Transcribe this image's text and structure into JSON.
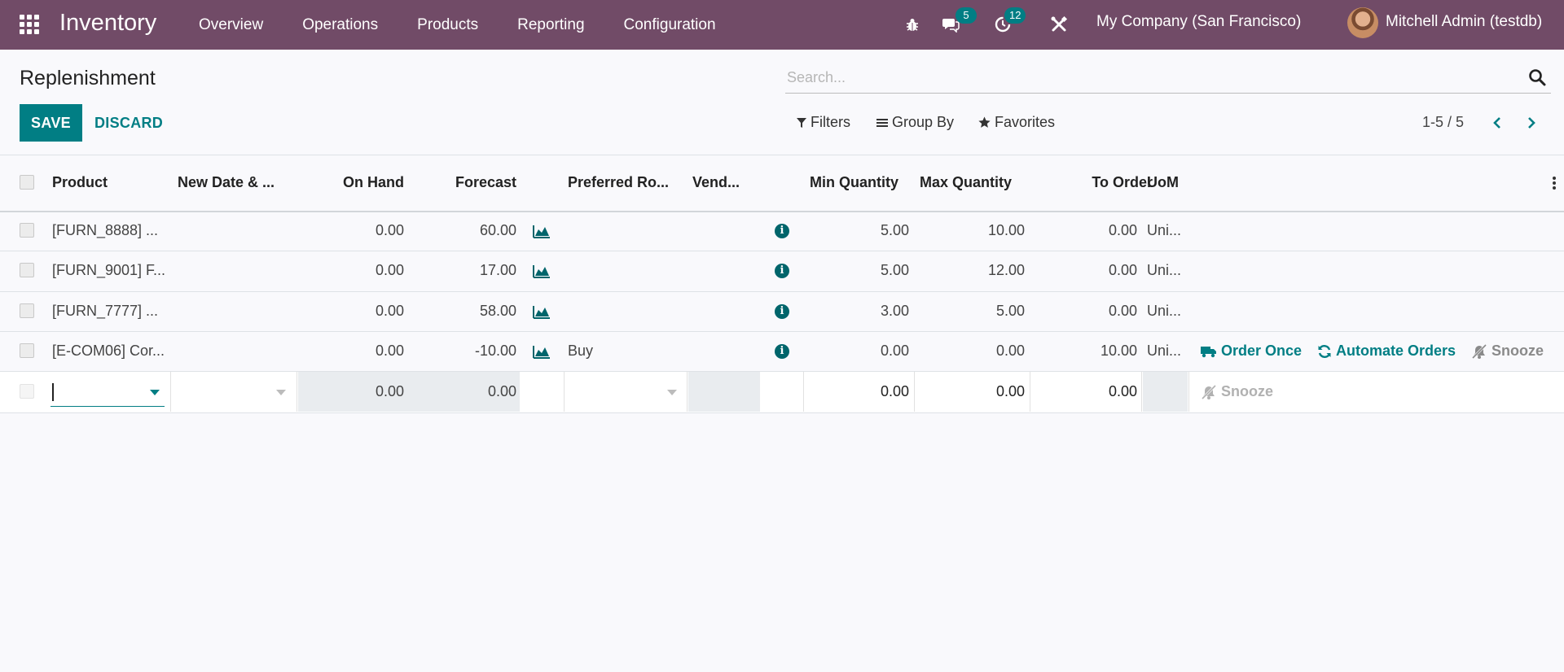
{
  "navbar": {
    "app_name": "Inventory",
    "menu": [
      "Overview",
      "Operations",
      "Products",
      "Reporting",
      "Configuration"
    ],
    "messages_count": "5",
    "activities_count": "12",
    "company": "My Company (San Francisco)",
    "user": "Mitchell Admin (testdb)"
  },
  "page": {
    "title": "Replenishment",
    "save_label": "SAVE",
    "discard_label": "DISCARD"
  },
  "search": {
    "placeholder": "Search...",
    "filters_label": "Filters",
    "groupby_label": "Group By",
    "favorites_label": "Favorites"
  },
  "pager": {
    "value": "1-5 / 5"
  },
  "table": {
    "columns": [
      "Product",
      "New Date & ...",
      "On Hand",
      "Forecast",
      "Preferred Ro...",
      "Vend...",
      "Min Quantity",
      "Max Quantity",
      "To Order",
      "UoM"
    ],
    "rows": [
      {
        "product": "[FURN_8888] ...",
        "on_hand": "0.00",
        "forecast": "60.00",
        "route": "",
        "min": "5.00",
        "max": "10.00",
        "to_order": "0.00",
        "uom": "Uni..."
      },
      {
        "product": "[FURN_9001] F...",
        "on_hand": "0.00",
        "forecast": "17.00",
        "route": "",
        "min": "5.00",
        "max": "12.00",
        "to_order": "0.00",
        "uom": "Uni..."
      },
      {
        "product": "[FURN_7777] ...",
        "on_hand": "0.00",
        "forecast": "58.00",
        "route": "",
        "min": "3.00",
        "max": "5.00",
        "to_order": "0.00",
        "uom": "Uni..."
      },
      {
        "product": "[E-COM06] Cor...",
        "on_hand": "0.00",
        "forecast": "-10.00",
        "route": "Buy",
        "min": "0.00",
        "max": "0.00",
        "to_order": "10.00",
        "uom": "Uni..."
      }
    ],
    "row_actions": {
      "order_once": "Order Once",
      "automate_orders": "Automate Orders",
      "snooze": "Snooze"
    },
    "edit_row": {
      "on_hand": "0.00",
      "forecast": "0.00",
      "min": "0.00",
      "max": "0.00",
      "to_order": "0.00",
      "snooze": "Snooze"
    }
  },
  "colors": {
    "navbar": "#714b67",
    "primary": "#017e84",
    "badge": "#017e84"
  }
}
